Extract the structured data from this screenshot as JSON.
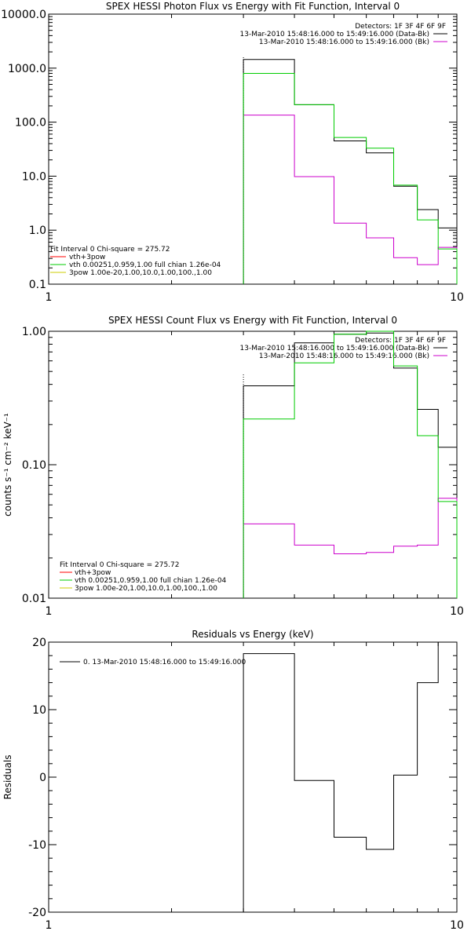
{
  "colors": {
    "data_bk": "#000000",
    "bk": "#cc00cc",
    "fit_total": "#ff0000",
    "fit_vth": "#00cc00",
    "fit_3pow": "#cccc00"
  },
  "chart_data": [
    {
      "type": "line",
      "title": "SPEX HESSI Photon Flux vs Energy with Fit Function, Interval 0",
      "xlabel": "",
      "ylabel": "",
      "xscale": "log",
      "yscale": "log",
      "xlim": [
        1,
        10
      ],
      "ylim": [
        0.1,
        10000
      ],
      "x_ticks": [
        {
          "v": 1,
          "label": "1"
        },
        {
          "v": 10,
          "label": "10"
        }
      ],
      "y_ticks": [
        {
          "v": 10000,
          "label": "10000.0"
        },
        {
          "v": 1000,
          "label": "1000.0"
        },
        {
          "v": 100,
          "label": "100.0"
        },
        {
          "v": 10,
          "label": "10.0"
        },
        {
          "v": 1,
          "label": "1.0"
        },
        {
          "v": 0.1,
          "label": "0.1"
        }
      ],
      "legend_top": [
        "Detectors: 1F 3F 4F 6F 9F",
        "13-Mar-2010 15:48:16.000 to 15:49:16.000 (Data-Bk)",
        "13-Mar-2010 15:48:16.000 to 15:49:16.000 (Bk)"
      ],
      "legend_bottom": [
        "Fit Interval 0   Chi-square = 275.72",
        "vth+3pow",
        "vth 0.00251,0.959,1.00  full chian 1.26e-04",
        "3pow 1.00e-20,1.00,10.0,1.00,100.,1.00"
      ],
      "marker_x": 3,
      "bin_edges": [
        3,
        4,
        5,
        6,
        7,
        8,
        9,
        10
      ],
      "series": [
        {
          "name": "13-Mar-2010 15:48:16.000 to 15:49:16.000 (Data-Bk)",
          "color_key": "data_bk",
          "values": [
            1450,
            210,
            45,
            27,
            6.5,
            2.4,
            1.1
          ]
        },
        {
          "name": "13-Mar-2010 15:48:16.000 to 15:49:16.000 (Bk)",
          "color_key": "bk",
          "values": [
            135,
            9.8,
            1.35,
            0.72,
            0.31,
            0.23,
            0.48
          ]
        },
        {
          "name": "vth 0.00251,0.959,1.00  full chian 1.26e-04",
          "color_key": "fit_vth",
          "values": [
            800,
            210,
            52,
            33,
            6.8,
            1.55,
            0.45
          ]
        }
      ]
    },
    {
      "type": "line",
      "title": "SPEX HESSI Count Flux vs Energy with Fit Function, Interval 0",
      "xlabel": "",
      "ylabel": "counts s⁻¹ cm⁻² keV⁻¹",
      "xscale": "log",
      "yscale": "log",
      "xlim": [
        1,
        10
      ],
      "ylim": [
        0.01,
        1
      ],
      "x_ticks": [
        {
          "v": 1,
          "label": "1"
        },
        {
          "v": 10,
          "label": "10"
        }
      ],
      "y_ticks": [
        {
          "v": 1,
          "label": "1.00"
        },
        {
          "v": 0.1,
          "label": "0.10"
        },
        {
          "v": 0.01,
          "label": "0.01"
        }
      ],
      "legend_top": [
        "Detectors: 1F 3F 4F 6F 9F",
        "13-Mar-2010 15:48:16.000 to 15:49:16.000 (Data-Bk)",
        "13-Mar-2010 15:48:16.000 to 15:49:16.000 (Bk)"
      ],
      "legend_bottom": [
        "Fit Interval 0   Chi-square = 275.72",
        "vth+3pow",
        "vth 0.00251,0.959,1.00  full chian 1.26e-04",
        "3pow 1.00e-20,1.00,10.0,1.00,100.,1.00"
      ],
      "marker_x": 3,
      "bin_edges": [
        3,
        4,
        5,
        6,
        7,
        8,
        9,
        10
      ],
      "series": [
        {
          "name": "13-Mar-2010 15:48:16.000 to 15:49:16.000 (Data-Bk)",
          "color_key": "data_bk",
          "values": [
            0.39,
            0.82,
            0.95,
            0.97,
            0.53,
            0.26,
            0.135
          ]
        },
        {
          "name": "13-Mar-2010 15:48:16.000 to 15:49:16.000 (Bk)",
          "color_key": "bk",
          "values": [
            0.036,
            0.025,
            0.0215,
            0.022,
            0.0245,
            0.025,
            0.056
          ]
        },
        {
          "name": "vth 0.00251,0.959,1.00  full chian 1.26e-04",
          "color_key": "fit_vth",
          "values": [
            0.22,
            0.58,
            0.95,
            1.0,
            0.55,
            0.165,
            0.053
          ]
        }
      ]
    },
    {
      "type": "line",
      "title": "Residuals vs Energy (keV)",
      "xlabel": "",
      "ylabel": "Residuals",
      "xscale": "log",
      "yscale": "linear",
      "xlim": [
        1,
        10
      ],
      "ylim": [
        -20,
        20
      ],
      "x_ticks": [
        {
          "v": 1,
          "label": "1"
        },
        {
          "v": 10,
          "label": "10"
        }
      ],
      "y_ticks": [
        {
          "v": 20,
          "label": "20"
        },
        {
          "v": 10,
          "label": "10"
        },
        {
          "v": 0,
          "label": "0"
        },
        {
          "v": -10,
          "label": "-10"
        },
        {
          "v": -20,
          "label": "-20"
        }
      ],
      "legend_top": [
        "0. 13-Mar-2010 15:48:16.000 to 15:49:16.000"
      ],
      "bin_edges": [
        3,
        4,
        5,
        6,
        7,
        8,
        9,
        10
      ],
      "series": [
        {
          "name": "0. 13-Mar-2010 15:48:16.000 to 15:49:16.000",
          "color_key": "data_bk",
          "values": [
            18.3,
            -0.5,
            -8.9,
            -10.7,
            0.3,
            14.0,
            20.1
          ]
        }
      ]
    }
  ]
}
